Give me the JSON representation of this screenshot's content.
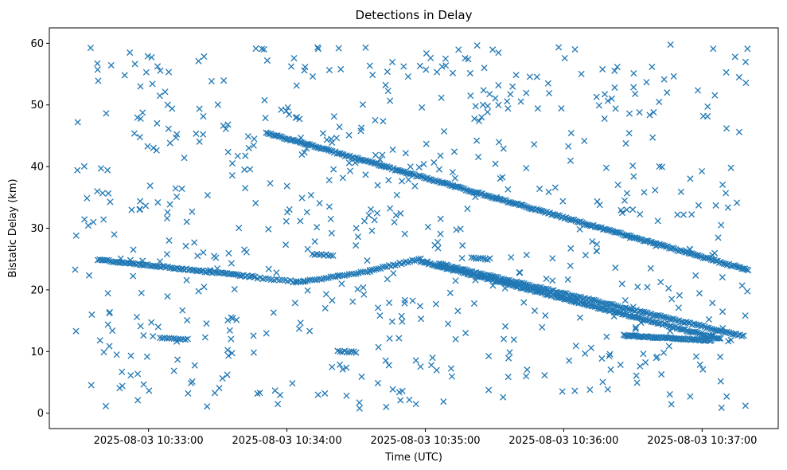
{
  "chart_data": {
    "type": "scatter",
    "title": "Detections in Delay",
    "xlabel": "Time (UTC)",
    "ylabel": "Bistatic Delay (km)",
    "marker": "x",
    "color": "#1f77b4",
    "grid": false,
    "x_format": "YYYY-MM-DD HH:MM:SS (UTC)",
    "xlim": [
      "2025-08-03 10:32:17",
      "2025-08-03 10:37:33"
    ],
    "ylim": [
      -2.5,
      62.5
    ],
    "xticks": [
      "2025-08-03 10:33:00",
      "2025-08-03 10:34:00",
      "2025-08-03 10:35:00",
      "2025-08-03 10:36:00",
      "2025-08-03 10:37:00"
    ],
    "yticks": [
      0,
      10,
      20,
      30,
      40,
      50,
      60
    ],
    "track_segments": [
      {
        "x_start": "2025-08-03 10:33:51",
        "x_end": "2025-08-03 10:37:20",
        "y_start": 45.5,
        "y_end": 23.2,
        "step_seconds": 0.7
      },
      {
        "x_start": "2025-08-03 10:32:38",
        "x_end": "2025-08-03 10:33:46",
        "y_start": 24.9,
        "y_end": 22.1,
        "step_seconds": 0.8
      },
      {
        "x_start": "2025-08-03 10:33:46",
        "x_end": "2025-08-03 10:34:04",
        "y_start": 22.0,
        "y_end": 21.3,
        "step_seconds": 1.2
      },
      {
        "x_start": "2025-08-03 10:34:04",
        "x_end": "2025-08-03 10:34:36",
        "y_start": 21.2,
        "y_end": 23.0,
        "step_seconds": 1.0
      },
      {
        "x_start": "2025-08-03 10:34:36",
        "x_end": "2025-08-03 10:34:58",
        "y_start": 23.2,
        "y_end": 25.0,
        "step_seconds": 0.9
      },
      {
        "x_start": "2025-08-03 10:34:58",
        "x_end": "2025-08-03 10:37:08",
        "y_start": 24.6,
        "y_end": 12.0,
        "step_seconds": 0.7
      },
      {
        "x_start": "2025-08-03 10:35:06",
        "x_end": "2025-08-03 10:37:18",
        "y_start": 24.2,
        "y_end": 12.5,
        "step_seconds": 0.8
      },
      {
        "x_start": "2025-08-03 10:36:26",
        "x_end": "2025-08-03 10:37:04",
        "y_start": 12.6,
        "y_end": 11.8,
        "step_seconds": 0.6
      },
      {
        "x_start": "2025-08-03 10:33:05",
        "x_end": "2025-08-03 10:33:17",
        "y_start": 12.2,
        "y_end": 12.0,
        "step_seconds": 1.0
      },
      {
        "x_start": "2025-08-03 10:34:11",
        "x_end": "2025-08-03 10:34:20",
        "y_start": 25.8,
        "y_end": 25.6,
        "step_seconds": 1.0
      },
      {
        "x_start": "2025-08-03 10:34:22",
        "x_end": "2025-08-03 10:34:30",
        "y_start": 10.1,
        "y_end": 9.9,
        "step_seconds": 1.0
      },
      {
        "x_start": "2025-08-03 10:35:20",
        "x_end": "2025-08-03 10:35:28",
        "y_start": 25.2,
        "y_end": 25.0,
        "step_seconds": 1.0
      }
    ],
    "background_clutter": {
      "count": 640,
      "x_range": [
        "2025-08-03 10:32:28",
        "2025-08-03 10:37:20"
      ],
      "y_range": [
        0.5,
        59.8
      ]
    }
  }
}
